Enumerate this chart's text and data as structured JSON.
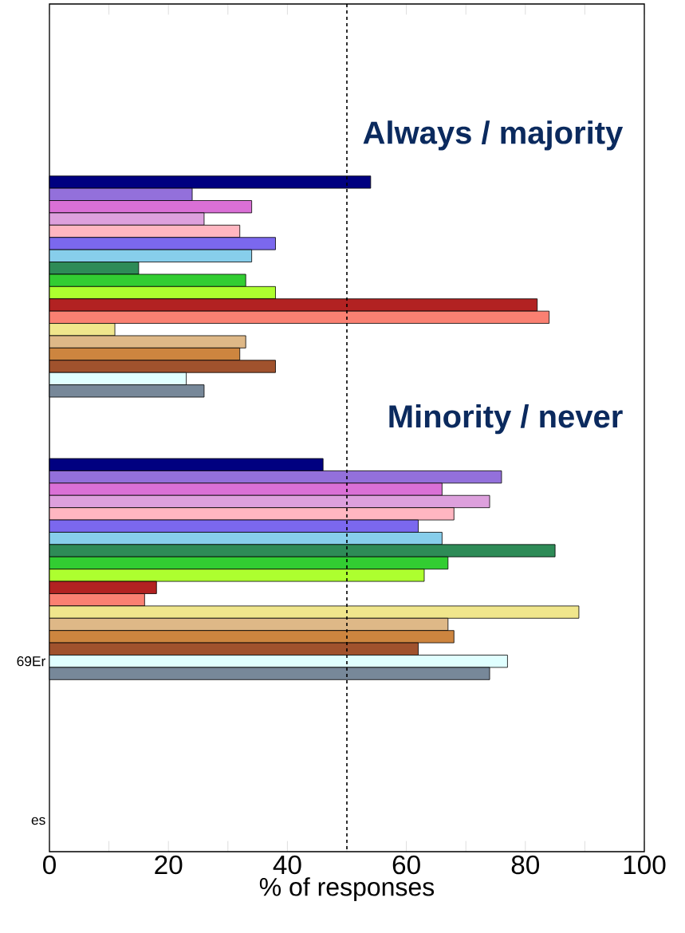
{
  "chart_data": {
    "type": "bar",
    "orientation": "horizontal",
    "xlabel": "% of responses",
    "categories": [
      null,
      null,
      null,
      null,
      null,
      null,
      null,
      null,
      null,
      null,
      null,
      null,
      null,
      null,
      null,
      null,
      null,
      null,
      null,
      null,
      null,
      null,
      null,
      null,
      null,
      null,
      null,
      null,
      null,
      null,
      null,
      null,
      null,
      null,
      null,
      null,
      null,
      null,
      null,
      null,
      null,
      null,
      null,
      null,
      null,
      null,
      null,
      null,
      null,
      null,
      null,
      null,
      null,
      "69Er",
      null,
      null,
      null,
      null,
      null,
      null,
      null,
      null,
      null,
      null,
      null,
      null,
      "es",
      null,
      null
    ],
    "values": [
      null,
      null,
      null,
      null,
      null,
      null,
      null,
      null,
      null,
      null,
      null,
      null,
      null,
      null,
      54,
      24,
      34,
      26,
      32,
      38,
      34,
      15,
      33,
      38,
      82,
      84,
      11,
      33,
      32,
      38,
      23,
      26,
      null,
      null,
      null,
      null,
      null,
      46,
      76,
      66,
      74,
      68,
      62,
      66,
      85,
      67,
      63,
      18,
      16,
      89,
      67,
      68,
      62,
      77,
      74,
      null,
      null,
      null,
      null,
      null,
      null,
      null,
      null,
      null,
      null,
      null,
      null,
      null,
      null
    ],
    "colors": [
      null,
      null,
      null,
      null,
      null,
      null,
      null,
      null,
      null,
      null,
      null,
      null,
      null,
      null,
      "#000080",
      "#9370db",
      "#da70d6",
      "#dda0dd",
      "#ffb6c1",
      "#7b68ee",
      "#87ceeb",
      "#2e8b57",
      "#32cd32",
      "#adff2f",
      "#b22222",
      "#fa8072",
      "#f0e68c",
      "#deb887",
      "#cd853f",
      "#a0522d",
      "#e0ffff",
      "#778899",
      null,
      null,
      null,
      null,
      null,
      "#000080",
      "#9370db",
      "#da70d6",
      "#dda0dd",
      "#ffb6c1",
      "#7b68ee",
      "#87ceeb",
      "#2e8b57",
      "#32cd32",
      "#adff2f",
      "#b22222",
      "#fa8072",
      "#f0e68c",
      "#deb887",
      "#cd853f",
      "#a0522d",
      "#e0ffff",
      "#778899",
      null,
      null,
      null,
      null,
      null,
      null,
      null,
      null,
      null,
      null,
      null,
      null,
      null,
      null
    ],
    "xlim": [
      0,
      100
    ],
    "xticks": [
      0,
      {
        "value": 10,
        "label": null
      },
      20,
      {
        "value": 30,
        "label": null
      },
      40,
      {
        "value": 50,
        "label": null
      },
      60,
      {
        "value": 70,
        "label": null
      },
      80,
      {
        "value": 90,
        "label": null
      },
      100
    ],
    "ref_lines": [
      {
        "axis": "x",
        "value": 50,
        "line_style": "dashed"
      }
    ],
    "annotations": [
      "Always / majority",
      "Minority / never"
    ]
  }
}
